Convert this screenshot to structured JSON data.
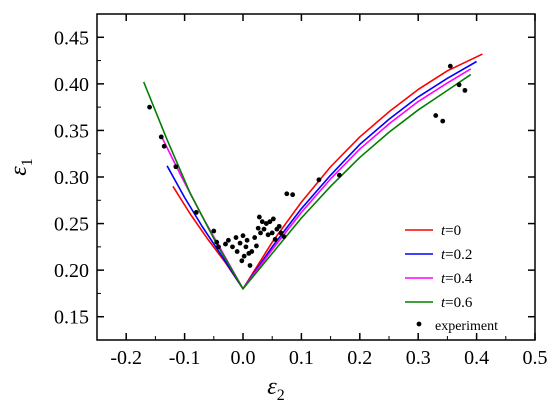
{
  "chart_data": {
    "type": "line",
    "xlabel": "ε",
    "xlabel_sub": "2",
    "ylabel": "ε",
    "ylabel_sub": "1",
    "xlim": [
      -0.25,
      0.5
    ],
    "ylim": [
      0.125,
      0.475
    ],
    "x_ticks": [
      -0.2,
      -0.1,
      0.0,
      0.1,
      0.2,
      0.3,
      0.4,
      0.5
    ],
    "x_tick_labels": [
      "-0.2",
      "-0.1",
      "0.0",
      "0.1",
      "0.2",
      "0.3",
      "0.4",
      "0.5"
    ],
    "y_ticks": [
      0.15,
      0.2,
      0.25,
      0.3,
      0.35,
      0.4,
      0.45
    ],
    "y_tick_labels": [
      "0.15",
      "0.20",
      "0.25",
      "0.30",
      "0.35",
      "0.40",
      "0.45"
    ],
    "legend_position": "bottom-right",
    "series": [
      {
        "name": "t=0",
        "legend_var": "t",
        "legend_value": "=0",
        "color": "#ff0000",
        "x": [
          -0.12,
          -0.09,
          -0.06,
          -0.03,
          0.0,
          0.05,
          0.1,
          0.15,
          0.2,
          0.25,
          0.3,
          0.35,
          0.41
        ],
        "y": [
          0.29,
          0.26,
          0.233,
          0.208,
          0.18,
          0.23,
          0.273,
          0.311,
          0.343,
          0.37,
          0.394,
          0.414,
          0.432
        ]
      },
      {
        "name": "t=0.2",
        "legend_var": "t",
        "legend_value": "=0.2",
        "color": "#0000ff",
        "x": [
          -0.13,
          -0.1,
          -0.07,
          -0.035,
          0.0,
          0.05,
          0.1,
          0.15,
          0.2,
          0.25,
          0.3,
          0.35,
          0.4
        ],
        "y": [
          0.312,
          0.278,
          0.247,
          0.214,
          0.18,
          0.225,
          0.266,
          0.302,
          0.335,
          0.362,
          0.386,
          0.406,
          0.424
        ]
      },
      {
        "name": "t=0.4",
        "legend_var": "t",
        "legend_value": "=0.4",
        "color": "#ff00ff",
        "x": [
          -0.14,
          -0.105,
          -0.07,
          -0.035,
          0.0,
          0.05,
          0.1,
          0.15,
          0.2,
          0.25,
          0.3,
          0.35,
          0.39
        ],
        "y": [
          0.344,
          0.3,
          0.258,
          0.219,
          0.18,
          0.222,
          0.262,
          0.298,
          0.33,
          0.357,
          0.381,
          0.401,
          0.416
        ]
      },
      {
        "name": "t=0.6",
        "legend_var": "t",
        "legend_value": "=0.6",
        "color": "#008000",
        "x": [
          -0.17,
          -0.13,
          -0.09,
          -0.045,
          0.0,
          0.05,
          0.1,
          0.15,
          0.2,
          0.25,
          0.3,
          0.35,
          0.39
        ],
        "y": [
          0.402,
          0.34,
          0.282,
          0.228,
          0.18,
          0.218,
          0.256,
          0.29,
          0.321,
          0.348,
          0.372,
          0.393,
          0.41
        ]
      }
    ],
    "scatter": {
      "name": "experiment",
      "color": "#000000",
      "points": [
        [
          -0.16,
          0.375
        ],
        [
          -0.14,
          0.343
        ],
        [
          -0.135,
          0.333
        ],
        [
          -0.115,
          0.311
        ],
        [
          -0.08,
          0.262
        ],
        [
          -0.05,
          0.242
        ],
        [
          -0.045,
          0.23
        ],
        [
          -0.042,
          0.225
        ],
        [
          -0.03,
          0.228
        ],
        [
          -0.025,
          0.232
        ],
        [
          -0.018,
          0.225
        ],
        [
          -0.012,
          0.235
        ],
        [
          -0.01,
          0.22
        ],
        [
          -0.005,
          0.229
        ],
        [
          -0.002,
          0.21
        ],
        [
          0.0,
          0.237
        ],
        [
          0.002,
          0.215
        ],
        [
          0.005,
          0.225
        ],
        [
          0.007,
          0.232
        ],
        [
          0.01,
          0.218
        ],
        [
          0.012,
          0.205
        ],
        [
          0.015,
          0.22
        ],
        [
          0.02,
          0.235
        ],
        [
          0.023,
          0.226
        ],
        [
          0.026,
          0.245
        ],
        [
          0.028,
          0.257
        ],
        [
          0.03,
          0.24
        ],
        [
          0.033,
          0.252
        ],
        [
          0.036,
          0.244
        ],
        [
          0.04,
          0.25
        ],
        [
          0.043,
          0.238
        ],
        [
          0.046,
          0.252
        ],
        [
          0.05,
          0.24
        ],
        [
          0.052,
          0.255
        ],
        [
          0.055,
          0.233
        ],
        [
          0.058,
          0.244
        ],
        [
          0.062,
          0.247
        ],
        [
          0.065,
          0.24
        ],
        [
          0.07,
          0.236
        ],
        [
          0.075,
          0.282
        ],
        [
          0.085,
          0.281
        ],
        [
          0.13,
          0.297
        ],
        [
          0.165,
          0.302
        ],
        [
          0.33,
          0.366
        ],
        [
          0.342,
          0.36
        ],
        [
          0.355,
          0.419
        ],
        [
          0.37,
          0.399
        ],
        [
          0.38,
          0.393
        ]
      ]
    }
  }
}
